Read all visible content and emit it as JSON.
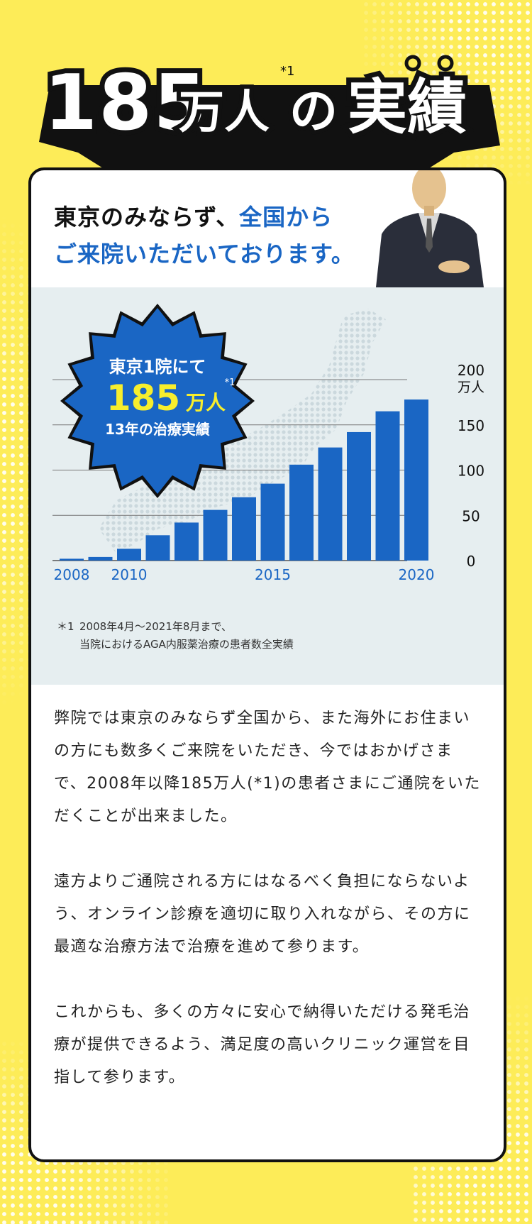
{
  "heading": {
    "number": "185",
    "unit": "万人",
    "footnote_mark": "*1",
    "particle": "の",
    "word": "実績"
  },
  "intro": {
    "line1_black": "東京のみならず、",
    "line1_blue": "全国から",
    "line2_blue": "ご来院いただいております。"
  },
  "badge": {
    "line1": "東京1院にて",
    "number": "185",
    "unit": "万人",
    "mark": "*1",
    "line3": "13年の治療実績"
  },
  "colors": {
    "background": "#fdec58",
    "accent_blue": "#1a66c4",
    "badge_text_yellow": "#f7ee2d",
    "chart_panel": "#e6eef0"
  },
  "chart_data": {
    "type": "bar",
    "x": [
      2008,
      2009,
      2010,
      2011,
      2012,
      2013,
      2014,
      2015,
      2016,
      2017,
      2018,
      2019,
      2020
    ],
    "values": [
      2,
      4,
      13,
      28,
      42,
      56,
      70,
      85,
      106,
      125,
      142,
      165,
      178
    ],
    "x_tick_labels": [
      "2008",
      "2010",
      "2015",
      "2020"
    ],
    "x_tick_values": [
      2008,
      2010,
      2015,
      2020
    ],
    "y_tick_labels": [
      "0",
      "50",
      "100",
      "150",
      "200"
    ],
    "y_tick_values": [
      0,
      50,
      100,
      150,
      200
    ],
    "y_unit": "万人",
    "ylim": [
      0,
      200
    ],
    "grid": true,
    "bar_color": "#1a66c4"
  },
  "footnote": {
    "mark": "＊1",
    "line1": "2008年4月～2021年8月まで、",
    "line2": "当院におけるAGA内服薬治療の患者数全実績"
  },
  "body": {
    "p1": "弊院では東京のみならず全国から、また海外にお住まいの方にも数多くご来院をいただき、今ではおかげさまで、2008年以降185万人(*1)の患者さまにご通院をいただくことが出来ました。",
    "p2": "遠方よりご通院される方にはなるべく負担にならないよう、オンライン診療を適切に取り入れながら、その方に最適な治療方法で治療を進めて参ります。",
    "p3": "これからも、多くの方々に安心で納得いただける発毛治療が提供できるよう、満足度の高いクリニック運営を目指して参ります。"
  }
}
